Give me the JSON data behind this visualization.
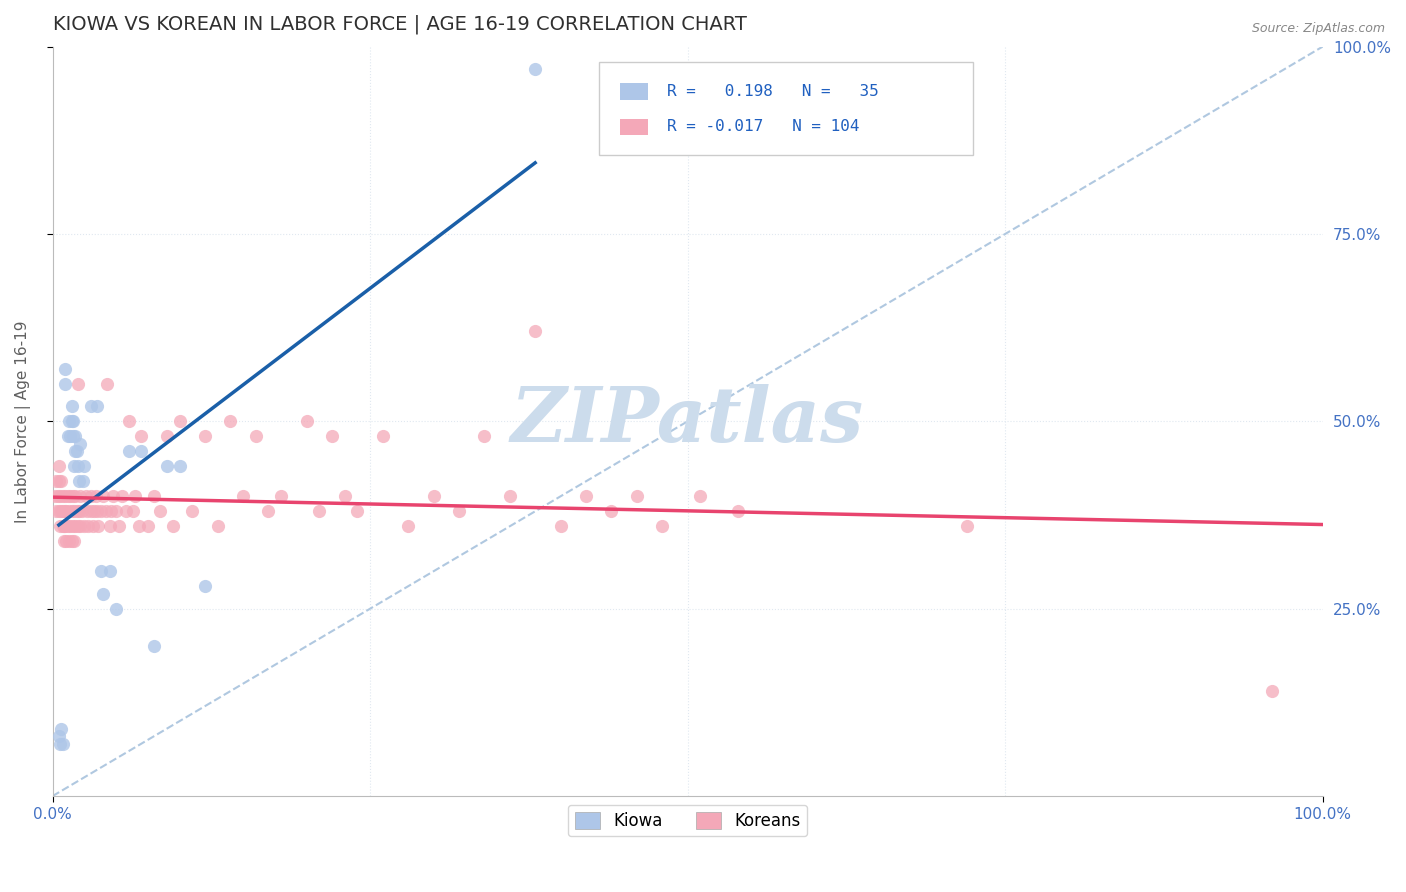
{
  "title": "KIOWA VS KOREAN IN LABOR FORCE | AGE 16-19 CORRELATION CHART",
  "source": "Source: ZipAtlas.com",
  "ylabel": "In Labor Force | Age 16-19",
  "xlim": [
    0.0,
    1.0
  ],
  "ylim": [
    0.0,
    1.0
  ],
  "kiowa_color": "#aec6e8",
  "korean_color": "#f4a8b8",
  "kiowa_R": 0.198,
  "kiowa_N": 35,
  "korean_R": -0.017,
  "korean_N": 104,
  "kiowa_line_color": "#1a5fa8",
  "korean_line_color": "#e8446e",
  "diag_line_color": "#b0c8e0",
  "watermark": "ZIPatlas",
  "watermark_color": "#ccdcec",
  "background_color": "#ffffff",
  "grid_color": "#e0e8f0",
  "title_color": "#303030",
  "axis_label_color": "#606060",
  "tick_color": "#4472c4",
  "legend_text_color": "#2060c0",
  "kiowa_x": [
    0.005,
    0.006,
    0.007,
    0.008,
    0.01,
    0.01,
    0.012,
    0.013,
    0.014,
    0.015,
    0.015,
    0.016,
    0.016,
    0.017,
    0.018,
    0.018,
    0.019,
    0.02,
    0.021,
    0.022,
    0.024,
    0.025,
    0.03,
    0.035,
    0.038,
    0.04,
    0.045,
    0.05,
    0.06,
    0.07,
    0.08,
    0.09,
    0.1,
    0.12,
    0.38
  ],
  "kiowa_y": [
    0.08,
    0.07,
    0.09,
    0.07,
    0.55,
    0.57,
    0.48,
    0.5,
    0.48,
    0.5,
    0.52,
    0.48,
    0.5,
    0.44,
    0.46,
    0.48,
    0.46,
    0.44,
    0.42,
    0.47,
    0.42,
    0.44,
    0.52,
    0.52,
    0.3,
    0.27,
    0.3,
    0.25,
    0.46,
    0.46,
    0.2,
    0.44,
    0.44,
    0.28,
    0.97
  ],
  "korean_x": [
    0.002,
    0.003,
    0.003,
    0.004,
    0.005,
    0.005,
    0.005,
    0.006,
    0.006,
    0.007,
    0.007,
    0.008,
    0.008,
    0.008,
    0.009,
    0.009,
    0.01,
    0.01,
    0.01,
    0.011,
    0.011,
    0.012,
    0.012,
    0.013,
    0.013,
    0.014,
    0.014,
    0.015,
    0.015,
    0.016,
    0.016,
    0.017,
    0.017,
    0.018,
    0.018,
    0.019,
    0.02,
    0.02,
    0.021,
    0.022,
    0.022,
    0.023,
    0.025,
    0.026,
    0.027,
    0.028,
    0.03,
    0.03,
    0.032,
    0.033,
    0.034,
    0.035,
    0.036,
    0.038,
    0.04,
    0.042,
    0.043,
    0.045,
    0.046,
    0.048,
    0.05,
    0.052,
    0.055,
    0.058,
    0.06,
    0.063,
    0.065,
    0.068,
    0.07,
    0.075,
    0.08,
    0.085,
    0.09,
    0.095,
    0.1,
    0.11,
    0.12,
    0.13,
    0.14,
    0.15,
    0.16,
    0.17,
    0.18,
    0.2,
    0.21,
    0.22,
    0.23,
    0.24,
    0.26,
    0.28,
    0.3,
    0.32,
    0.34,
    0.36,
    0.38,
    0.4,
    0.42,
    0.44,
    0.46,
    0.48,
    0.51,
    0.54,
    0.72,
    0.96
  ],
  "korean_y": [
    0.4,
    0.38,
    0.42,
    0.4,
    0.38,
    0.42,
    0.44,
    0.36,
    0.4,
    0.38,
    0.42,
    0.4,
    0.36,
    0.38,
    0.34,
    0.36,
    0.38,
    0.4,
    0.36,
    0.34,
    0.38,
    0.36,
    0.4,
    0.34,
    0.38,
    0.36,
    0.4,
    0.38,
    0.34,
    0.4,
    0.36,
    0.34,
    0.38,
    0.36,
    0.4,
    0.38,
    0.36,
    0.55,
    0.38,
    0.36,
    0.4,
    0.38,
    0.36,
    0.4,
    0.38,
    0.36,
    0.38,
    0.4,
    0.36,
    0.38,
    0.4,
    0.38,
    0.36,
    0.38,
    0.4,
    0.38,
    0.55,
    0.36,
    0.38,
    0.4,
    0.38,
    0.36,
    0.4,
    0.38,
    0.5,
    0.38,
    0.4,
    0.36,
    0.48,
    0.36,
    0.4,
    0.38,
    0.48,
    0.36,
    0.5,
    0.38,
    0.48,
    0.36,
    0.5,
    0.4,
    0.48,
    0.38,
    0.4,
    0.5,
    0.38,
    0.48,
    0.4,
    0.38,
    0.48,
    0.36,
    0.4,
    0.38,
    0.48,
    0.4,
    0.62,
    0.36,
    0.4,
    0.38,
    0.4,
    0.36,
    0.4,
    0.38,
    0.36,
    0.14
  ]
}
